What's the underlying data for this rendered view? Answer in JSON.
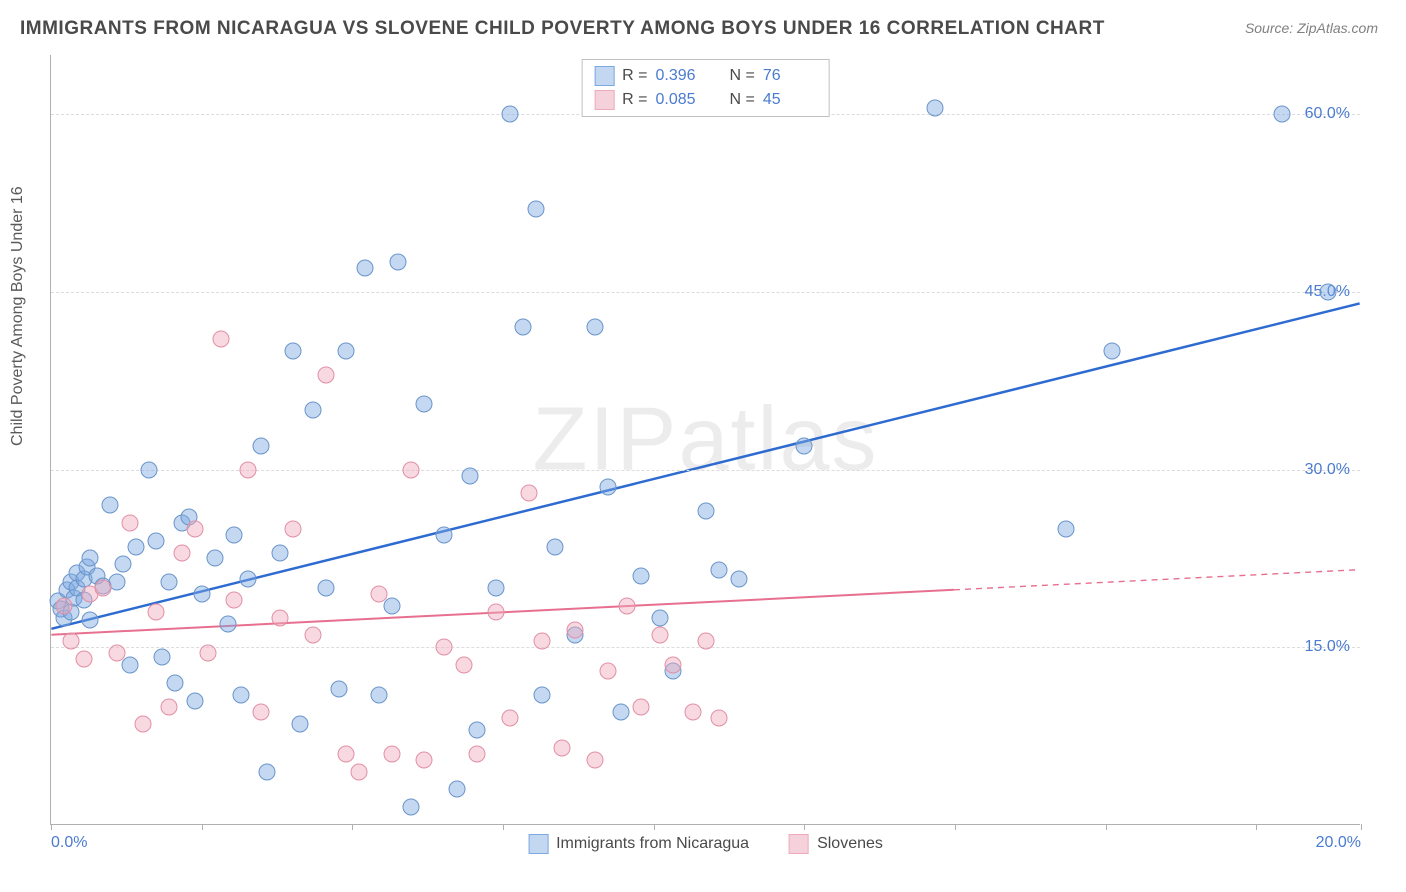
{
  "title": "IMMIGRANTS FROM NICARAGUA VS SLOVENE CHILD POVERTY AMONG BOYS UNDER 16 CORRELATION CHART",
  "source": "Source: ZipAtlas.com",
  "y_axis_title": "Child Poverty Among Boys Under 16",
  "watermark": "ZIPatlas",
  "chart": {
    "type": "scatter",
    "xlim": [
      0,
      20
    ],
    "ylim": [
      0,
      65
    ],
    "x_ticks": [
      0,
      2.3,
      4.6,
      6.9,
      9.2,
      11.5,
      13.8,
      16.1,
      18.4,
      20
    ],
    "x_tick_labels": {
      "0": "0.0%",
      "20": "20.0%"
    },
    "y_gridlines": [
      15,
      30,
      45,
      60
    ],
    "y_tick_labels": {
      "15": "15.0%",
      "30": "30.0%",
      "45": "45.0%",
      "60": "60.0%"
    },
    "background_color": "#ffffff",
    "grid_color": "#dcdcdc",
    "axis_color": "#b0b0b0",
    "tick_label_color": "#4a7bd0",
    "series": [
      {
        "name": "Immigrants from Nicaragua",
        "color_fill": "rgba(125,168,227,0.45)",
        "color_stroke": "#6a95c9",
        "swatch_fill": "#c3d7f0",
        "swatch_stroke": "#7da8e3",
        "R": "0.396",
        "N": "76",
        "marker_radius": 8.5,
        "trend": {
          "x1": 0,
          "y1": 16.5,
          "x2": 20,
          "y2": 44.0,
          "solid_until_x": 20,
          "color": "#2e6bd1",
          "width": 2.5
        },
        "points": [
          [
            0.1,
            18.9
          ],
          [
            0.15,
            18.2
          ],
          [
            0.2,
            17.5
          ],
          [
            0.25,
            19.8
          ],
          [
            0.3,
            18.0
          ],
          [
            0.3,
            20.5
          ],
          [
            0.35,
            19.2
          ],
          [
            0.4,
            20.0
          ],
          [
            0.4,
            21.3
          ],
          [
            0.5,
            20.8
          ],
          [
            0.5,
            19.0
          ],
          [
            0.55,
            21.8
          ],
          [
            0.6,
            22.5
          ],
          [
            0.6,
            17.3
          ],
          [
            0.7,
            21.0
          ],
          [
            0.8,
            20.2
          ],
          [
            0.9,
            27.0
          ],
          [
            1.0,
            20.5
          ],
          [
            1.1,
            22.0
          ],
          [
            1.2,
            13.5
          ],
          [
            1.3,
            23.5
          ],
          [
            1.5,
            30.0
          ],
          [
            1.6,
            24.0
          ],
          [
            1.7,
            14.2
          ],
          [
            1.8,
            20.5
          ],
          [
            1.9,
            12.0
          ],
          [
            2.0,
            25.5
          ],
          [
            2.1,
            26.0
          ],
          [
            2.2,
            10.5
          ],
          [
            2.3,
            19.5
          ],
          [
            2.5,
            22.5
          ],
          [
            2.7,
            17.0
          ],
          [
            2.8,
            24.5
          ],
          [
            2.9,
            11.0
          ],
          [
            3.0,
            20.8
          ],
          [
            3.2,
            32.0
          ],
          [
            3.3,
            4.5
          ],
          [
            3.5,
            23.0
          ],
          [
            3.7,
            40.0
          ],
          [
            3.8,
            8.5
          ],
          [
            4.0,
            35.0
          ],
          [
            4.2,
            20.0
          ],
          [
            4.4,
            11.5
          ],
          [
            4.5,
            40.0
          ],
          [
            4.8,
            47.0
          ],
          [
            5.0,
            11.0
          ],
          [
            5.2,
            18.5
          ],
          [
            5.3,
            47.5
          ],
          [
            5.5,
            1.5
          ],
          [
            5.7,
            35.5
          ],
          [
            6.0,
            24.5
          ],
          [
            6.2,
            3.0
          ],
          [
            6.4,
            29.5
          ],
          [
            6.5,
            8.0
          ],
          [
            6.8,
            20.0
          ],
          [
            7.0,
            60.0
          ],
          [
            7.2,
            42.0
          ],
          [
            7.4,
            52.0
          ],
          [
            7.5,
            11.0
          ],
          [
            7.7,
            23.5
          ],
          [
            8.0,
            16.0
          ],
          [
            8.3,
            42.0
          ],
          [
            8.5,
            28.5
          ],
          [
            8.7,
            9.5
          ],
          [
            9.0,
            21.0
          ],
          [
            9.3,
            17.5
          ],
          [
            9.5,
            13.0
          ],
          [
            10.0,
            26.5
          ],
          [
            10.2,
            21.5
          ],
          [
            10.5,
            20.8
          ],
          [
            11.5,
            32.0
          ],
          [
            13.5,
            60.5
          ],
          [
            15.5,
            25.0
          ],
          [
            16.2,
            40.0
          ],
          [
            18.8,
            60.0
          ],
          [
            19.5,
            45.0
          ]
        ]
      },
      {
        "name": "Slovenes",
        "color_fill": "rgba(239,170,189,0.45)",
        "color_stroke": "#e28fa5",
        "swatch_fill": "#f5d2db",
        "swatch_stroke": "#efaabd",
        "R": "0.085",
        "N": "45",
        "marker_radius": 8.5,
        "trend": {
          "x1": 0,
          "y1": 16.0,
          "x2": 20,
          "y2": 21.5,
          "solid_until_x": 13.8,
          "color": "#e76f8f",
          "width": 2
        },
        "points": [
          [
            0.2,
            18.5
          ],
          [
            0.3,
            15.5
          ],
          [
            0.5,
            14.0
          ],
          [
            0.6,
            19.5
          ],
          [
            0.8,
            20.0
          ],
          [
            1.0,
            14.5
          ],
          [
            1.2,
            25.5
          ],
          [
            1.4,
            8.5
          ],
          [
            1.6,
            18.0
          ],
          [
            1.8,
            10.0
          ],
          [
            2.0,
            23.0
          ],
          [
            2.2,
            25.0
          ],
          [
            2.4,
            14.5
          ],
          [
            2.6,
            41.0
          ],
          [
            2.8,
            19.0
          ],
          [
            3.0,
            30.0
          ],
          [
            3.2,
            9.5
          ],
          [
            3.5,
            17.5
          ],
          [
            3.7,
            25.0
          ],
          [
            4.0,
            16.0
          ],
          [
            4.2,
            38.0
          ],
          [
            4.5,
            6.0
          ],
          [
            4.7,
            4.5
          ],
          [
            5.0,
            19.5
          ],
          [
            5.2,
            6.0
          ],
          [
            5.5,
            30.0
          ],
          [
            5.7,
            5.5
          ],
          [
            6.0,
            15.0
          ],
          [
            6.3,
            13.5
          ],
          [
            6.5,
            6.0
          ],
          [
            6.8,
            18.0
          ],
          [
            7.0,
            9.0
          ],
          [
            7.3,
            28.0
          ],
          [
            7.5,
            15.5
          ],
          [
            7.8,
            6.5
          ],
          [
            8.0,
            16.5
          ],
          [
            8.3,
            5.5
          ],
          [
            8.5,
            13.0
          ],
          [
            8.8,
            18.5
          ],
          [
            9.0,
            10.0
          ],
          [
            9.3,
            16.0
          ],
          [
            9.5,
            13.5
          ],
          [
            9.8,
            9.5
          ],
          [
            10.0,
            15.5
          ],
          [
            10.2,
            9.0
          ]
        ]
      }
    ]
  },
  "legend_bottom": [
    {
      "label": "Immigrants from Nicaragua",
      "fill": "#c3d7f0",
      "stroke": "#7da8e3"
    },
    {
      "label": "Slovenes",
      "fill": "#f5d2db",
      "stroke": "#efaabd"
    }
  ]
}
